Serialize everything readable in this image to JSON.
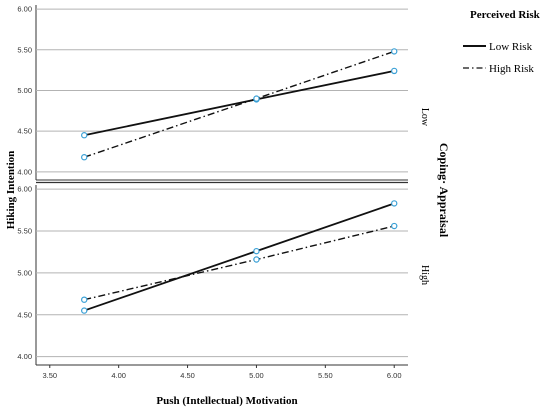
{
  "chart_data": {
    "type": "line",
    "xlabel": "Push (Intellectual) Motivation",
    "ylabel": "Hiking Intention",
    "xlim": [
      3.4,
      6.1
    ],
    "xticks": [
      "3.50",
      "4.00",
      "4.50",
      "5.00",
      "5.50",
      "6.00"
    ],
    "ylim": [
      3.9,
      6.05
    ],
    "yticks": [
      "4.00",
      "4.50",
      "5.00",
      "5.50",
      "6.00"
    ],
    "grid": "horizontal",
    "legend": {
      "title": "Perceived Risk",
      "position": "top-right",
      "entries": [
        "Low Risk",
        "High Risk"
      ]
    },
    "panel_group_label": "Coping· Appraisal",
    "panels": [
      {
        "label": "Low",
        "series": [
          {
            "name": "Low Risk",
            "style": "solid",
            "x": [
              3.75,
              5.0,
              6.0
            ],
            "y": [
              4.45,
              4.89,
              5.24
            ]
          },
          {
            "name": "High Risk",
            "style": "dashdot",
            "x": [
              3.75,
              5.0,
              6.0
            ],
            "y": [
              4.18,
              4.9,
              5.48
            ]
          }
        ]
      },
      {
        "label": "High",
        "series": [
          {
            "name": "Low Risk",
            "style": "solid",
            "x": [
              3.75,
              5.0,
              6.0
            ],
            "y": [
              4.55,
              5.26,
              5.83
            ]
          },
          {
            "name": "High Risk",
            "style": "dashdot",
            "x": [
              3.75,
              5.0,
              6.0
            ],
            "y": [
              4.68,
              5.16,
              5.56
            ]
          }
        ]
      }
    ],
    "colors": {
      "line": "#111111",
      "marker": "#3aa0d6",
      "grid": "#b3b3b3",
      "axis": "#333333"
    }
  }
}
